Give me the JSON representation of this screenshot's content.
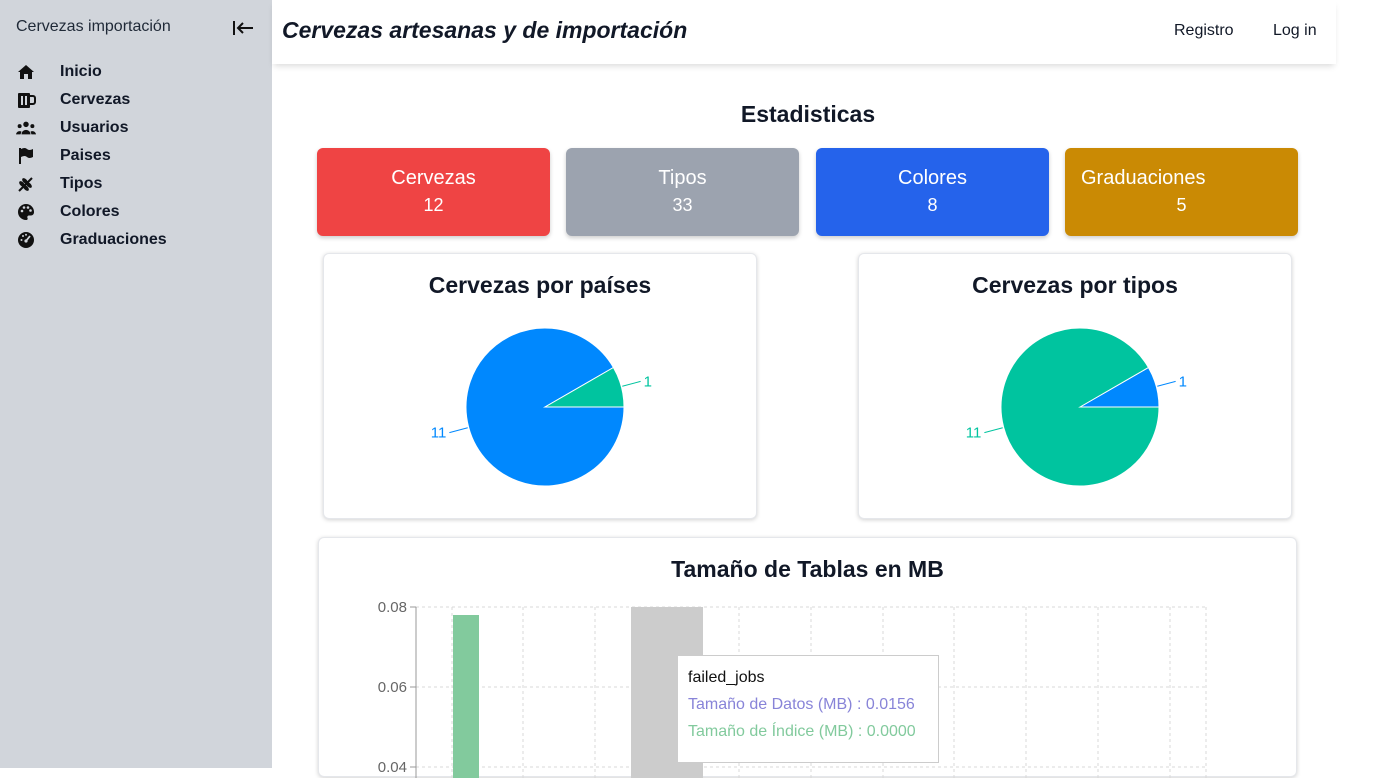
{
  "sidebar": {
    "brand": "Cervezas importación",
    "items": [
      {
        "label": "Inicio",
        "icon": "home-icon"
      },
      {
        "label": "Cervezas",
        "icon": "beer-mug-icon"
      },
      {
        "label": "Usuarios",
        "icon": "users-icon"
      },
      {
        "label": "Paises",
        "icon": "flag-icon"
      },
      {
        "label": "Tipos",
        "icon": "wheat-icon"
      },
      {
        "label": "Colores",
        "icon": "palette-icon"
      },
      {
        "label": "Graduaciones",
        "icon": "gauge-icon"
      }
    ]
  },
  "header": {
    "title": "Cervezas artesanas y de importación",
    "nav": {
      "register": "Registro",
      "login": "Log in"
    }
  },
  "main": {
    "title": "Estadisticas",
    "stats": [
      {
        "name": "Cervezas",
        "value": "12",
        "color": "#ef4444"
      },
      {
        "name": "Tipos",
        "value": "33",
        "color": "#9ca3af"
      },
      {
        "name": "Colores",
        "value": "8",
        "color": "#2563eb"
      },
      {
        "name": "Graduaciones",
        "value": "5",
        "color": "#ca8a04"
      }
    ]
  },
  "chart_data": [
    {
      "type": "pie",
      "title": "Cervezas por países",
      "slices": [
        {
          "value": 11,
          "label": "11",
          "color": "#0088fe"
        },
        {
          "value": 1,
          "label": "1",
          "color": "#00c49f"
        }
      ]
    },
    {
      "type": "pie",
      "title": "Cervezas por tipos",
      "slices": [
        {
          "value": 1,
          "label": "1",
          "color": "#0088fe"
        },
        {
          "value": 11,
          "label": "11",
          "color": "#00c49f"
        }
      ]
    },
    {
      "type": "bar",
      "title": "Tamaño de Tablas en MB",
      "ylim": [
        0.04,
        0.08
      ],
      "yticks": [
        "0.08",
        "0.06",
        "0.04"
      ],
      "grid": true,
      "bars": [
        {
          "value": 0.078,
          "color": "#82ca9d"
        },
        {
          "value": 0.08,
          "color": "#cccccc",
          "state": "hover"
        }
      ],
      "tooltip": {
        "title": "failed_jobs",
        "lines": [
          {
            "label": "Tamaño de Datos (MB) : 0.0156",
            "color": "#8884d8"
          },
          {
            "label": "Tamaño de Índice (MB) : 0.0000",
            "color": "#82ca9d"
          }
        ]
      }
    }
  ]
}
